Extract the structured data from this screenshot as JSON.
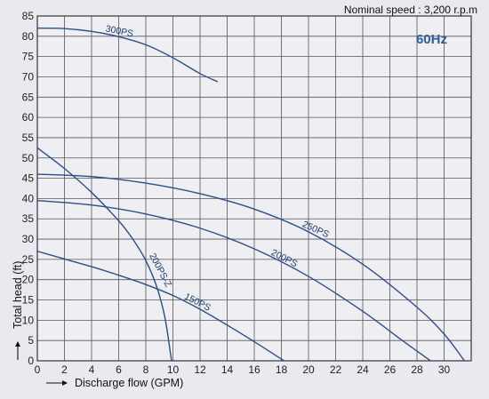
{
  "chart_data": {
    "type": "line",
    "note": "Nominal speed : 3,200 r.p.m",
    "frequency": "60Hz",
    "xlabel": "Discharge flow  (GPM)",
    "ylabel": "Total head  (ft)",
    "xlim": [
      0,
      32
    ],
    "ylim": [
      0,
      85
    ],
    "xticks": [
      0,
      2,
      4,
      6,
      8,
      10,
      12,
      14,
      16,
      18,
      20,
      22,
      24,
      26,
      28,
      30
    ],
    "yticks": [
      0,
      5,
      10,
      15,
      20,
      25,
      30,
      35,
      40,
      45,
      50,
      55,
      60,
      65,
      70,
      75,
      80,
      85
    ],
    "grid": true,
    "curve_color": "#2d4f8a",
    "series": [
      {
        "name": "300PS",
        "x": [
          0,
          2,
          4,
          6,
          8,
          10,
          12,
          13.3
        ],
        "y": [
          82,
          81.9,
          81.2,
          79.9,
          77.9,
          74.7,
          70.8,
          68.8
        ]
      },
      {
        "name": "250PS",
        "x": [
          0,
          4,
          8,
          12,
          16,
          20,
          24,
          28,
          30,
          31.5
        ],
        "y": [
          46,
          45.4,
          43.8,
          41.2,
          37.4,
          31.8,
          23.8,
          13.2,
          6.6,
          0
        ]
      },
      {
        "name": "200PS",
        "x": [
          0,
          4,
          8,
          12,
          16,
          20,
          24,
          27,
          29
        ],
        "y": [
          39.5,
          38.4,
          36.2,
          32.7,
          27.6,
          20.8,
          12.2,
          4.8,
          0
        ]
      },
      {
        "name": "200PS-Z",
        "x": [
          0,
          2,
          4,
          6,
          7,
          8,
          8.8,
          9.4,
          9.9
        ],
        "y": [
          52.5,
          47.4,
          41.5,
          34.5,
          30.2,
          24.7,
          18.3,
          10.8,
          0
        ]
      },
      {
        "name": "150PS",
        "x": [
          0,
          2,
          4,
          6,
          8,
          10,
          12,
          14,
          16,
          18.2
        ],
        "y": [
          27,
          25.1,
          23.2,
          21.1,
          18.8,
          16.1,
          12.7,
          8.8,
          4.7,
          0
        ]
      }
    ]
  }
}
